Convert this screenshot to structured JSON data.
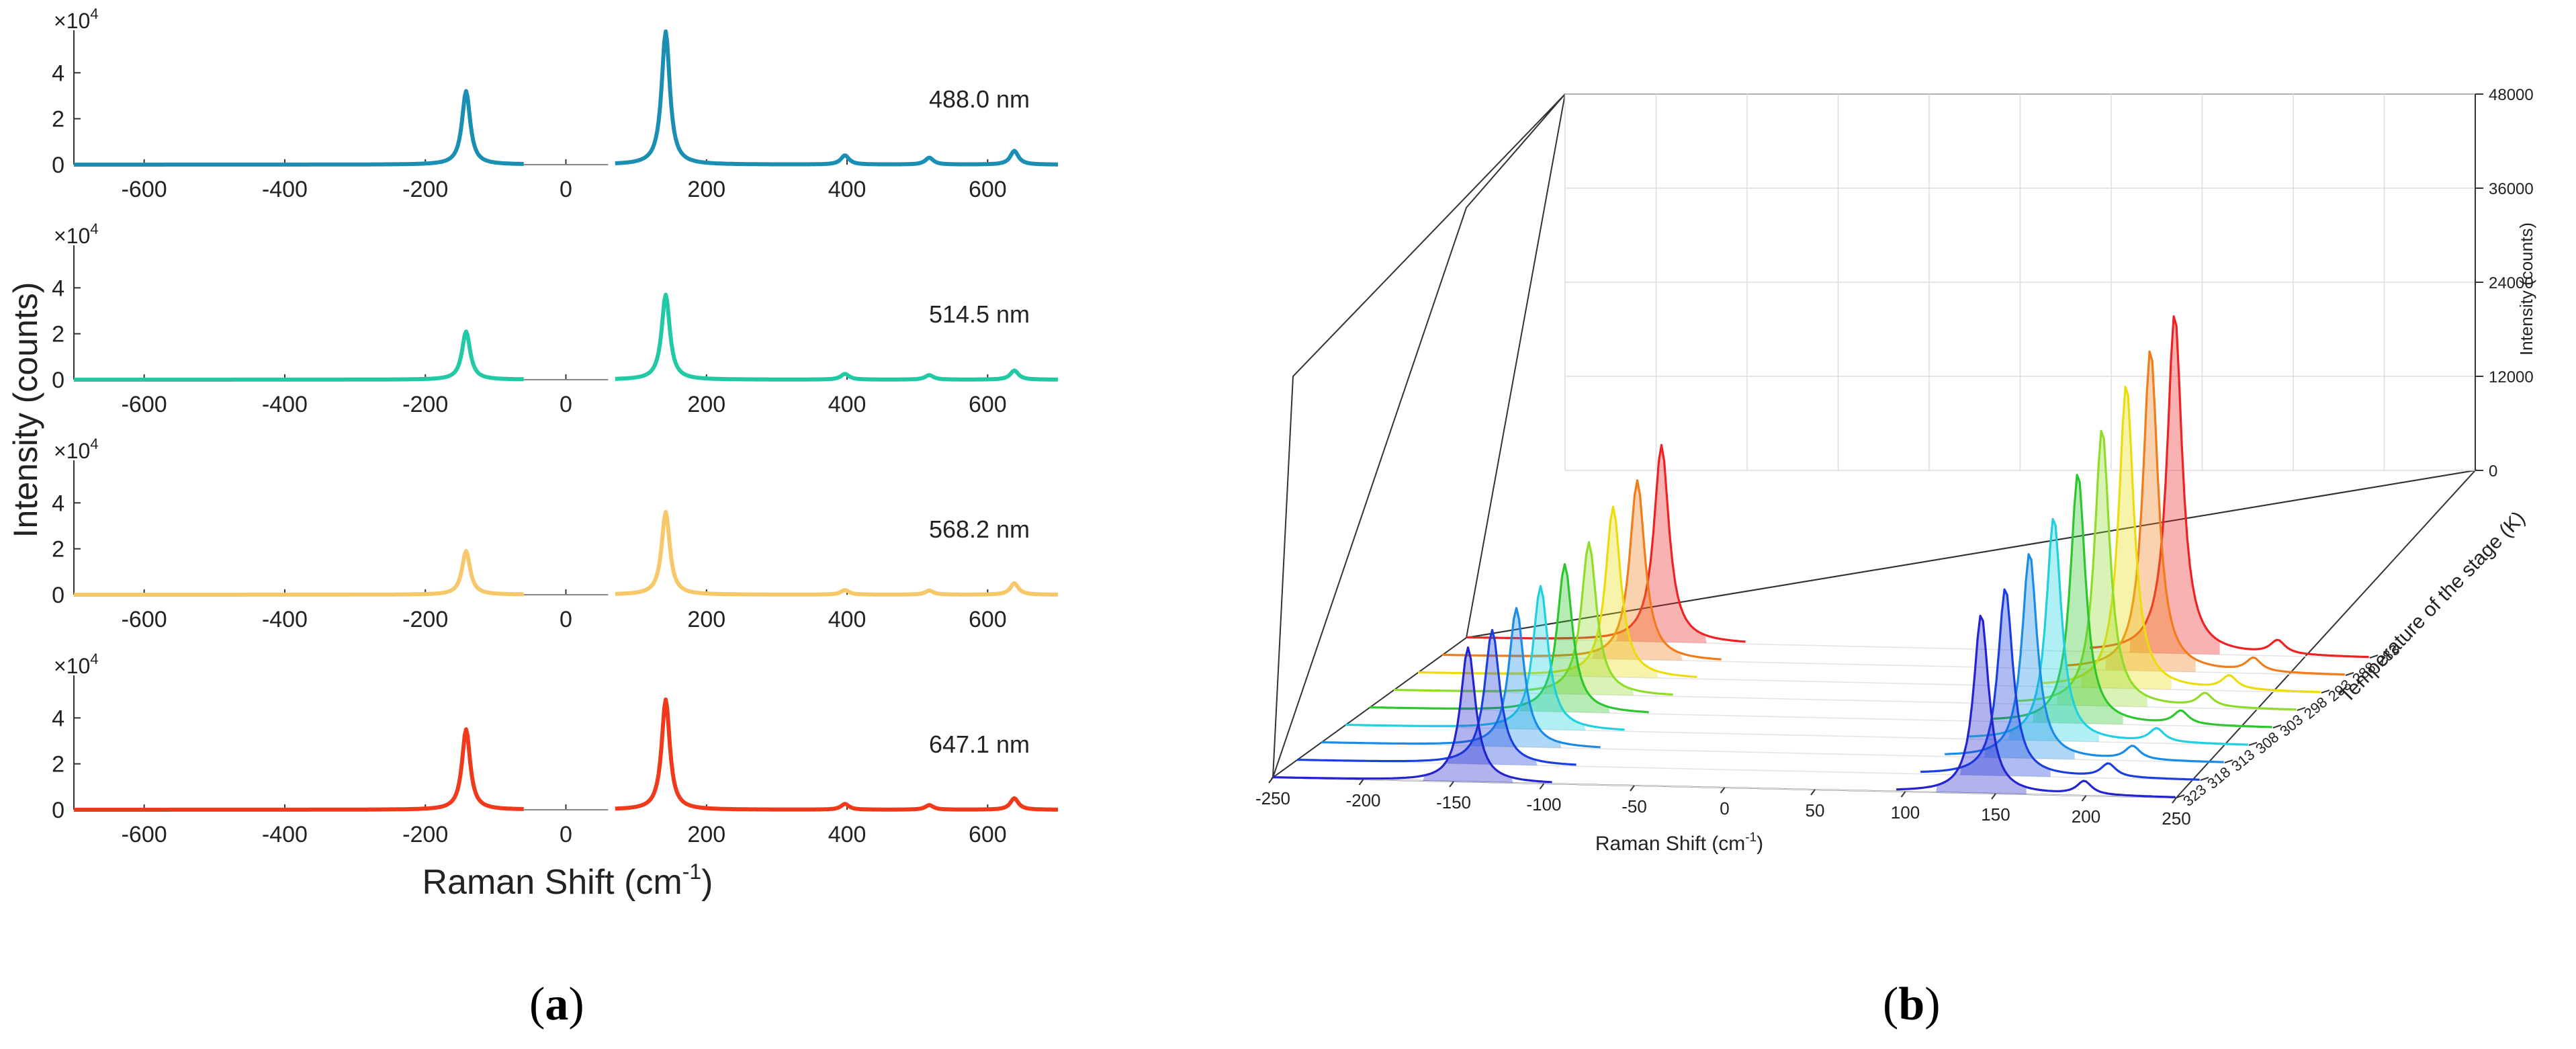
{
  "panels": {
    "a": {
      "caption_open": "(",
      "caption_letter": "a",
      "caption_close": ")"
    },
    "b": {
      "caption_open": "(",
      "caption_letter": "b",
      "caption_close": ")"
    }
  },
  "chart_data": [
    {
      "id": "a",
      "type": "line",
      "title": "",
      "xlabel": "Raman Shift (cm",
      "xlabel_sup": "-1",
      "xlabel_tail": ")",
      "ylabel": "Intensity (counts)",
      "xlim": [
        -700,
        700
      ],
      "ylim": [
        0,
        60000
      ],
      "x_ticks": [
        -600,
        -400,
        -200,
        0,
        200,
        400,
        600
      ],
      "y_ticks": [
        0,
        2,
        4
      ],
      "y_multiplier_base": "×10",
      "y_multiplier_exp": "4",
      "series": [
        {
          "name": "488.0 nm",
          "color": "#1a8fb3",
          "peaks": [
            {
              "x": -142,
              "y": 32000
            },
            {
              "x": 142,
              "y": 58000
            },
            {
              "x": 397,
              "y": 4000
            },
            {
              "x": 517,
              "y": 3000
            },
            {
              "x": 638,
              "y": 6000
            }
          ]
        },
        {
          "name": "514.5 nm",
          "color": "#22c9a5",
          "peaks": [
            {
              "x": -142,
              "y": 21000
            },
            {
              "x": 142,
              "y": 37000
            },
            {
              "x": 397,
              "y": 2500
            },
            {
              "x": 517,
              "y": 2000
            },
            {
              "x": 638,
              "y": 4000
            }
          ]
        },
        {
          "name": "568.2 nm",
          "color": "#f7c86a",
          "peaks": [
            {
              "x": -142,
              "y": 19000
            },
            {
              "x": 142,
              "y": 36000
            },
            {
              "x": 397,
              "y": 2000
            },
            {
              "x": 517,
              "y": 1800
            },
            {
              "x": 638,
              "y": 5000
            }
          ]
        },
        {
          "name": "647.1 nm",
          "color": "#f03a1b",
          "peaks": [
            {
              "x": -142,
              "y": 35000
            },
            {
              "x": 142,
              "y": 48000
            },
            {
              "x": 397,
              "y": 2500
            },
            {
              "x": 517,
              "y": 2000
            },
            {
              "x": 638,
              "y": 5000
            }
          ]
        }
      ]
    },
    {
      "id": "b",
      "type": "area",
      "title": "",
      "xlabel": "Raman Shift (cm",
      "xlabel_sup": "-1",
      "xlabel_tail": ")",
      "ylabel": "Temperature of the stage (K)",
      "zlabel": "Intensity (counts)",
      "xlim": [
        -250,
        250
      ],
      "zlim": [
        0,
        48000
      ],
      "x_ticks": [
        -250,
        -200,
        -150,
        -100,
        -50,
        0,
        50,
        100,
        150,
        200,
        250
      ],
      "z_ticks": [
        0,
        12000,
        24000,
        36000,
        48000
      ],
      "temperatures": [
        283,
        288,
        293,
        298,
        303,
        308,
        313,
        318,
        323
      ],
      "series": [
        {
          "temperature": 283,
          "color": "#ee2222",
          "stokes": 38000,
          "antistokes": 22000
        },
        {
          "temperature": 288,
          "color": "#f07d1a",
          "stokes": 36000,
          "antistokes": 20000
        },
        {
          "temperature": 293,
          "color": "#ecdc0e",
          "stokes": 34000,
          "antistokes": 19000
        },
        {
          "temperature": 298,
          "color": "#8fdc2a",
          "stokes": 31000,
          "antistokes": 17000
        },
        {
          "temperature": 303,
          "color": "#2ec62e",
          "stokes": 28000,
          "antistokes": 16500
        },
        {
          "temperature": 308,
          "color": "#1ed0e0",
          "stokes": 25000,
          "antistokes": 16000
        },
        {
          "temperature": 313,
          "color": "#1a8ce8",
          "stokes": 23000,
          "antistokes": 15500
        },
        {
          "temperature": 318,
          "color": "#1a3ee0",
          "stokes": 21000,
          "antistokes": 15000
        },
        {
          "temperature": 323,
          "color": "#2323d2",
          "stokes": 20000,
          "antistokes": 15000
        }
      ]
    }
  ]
}
